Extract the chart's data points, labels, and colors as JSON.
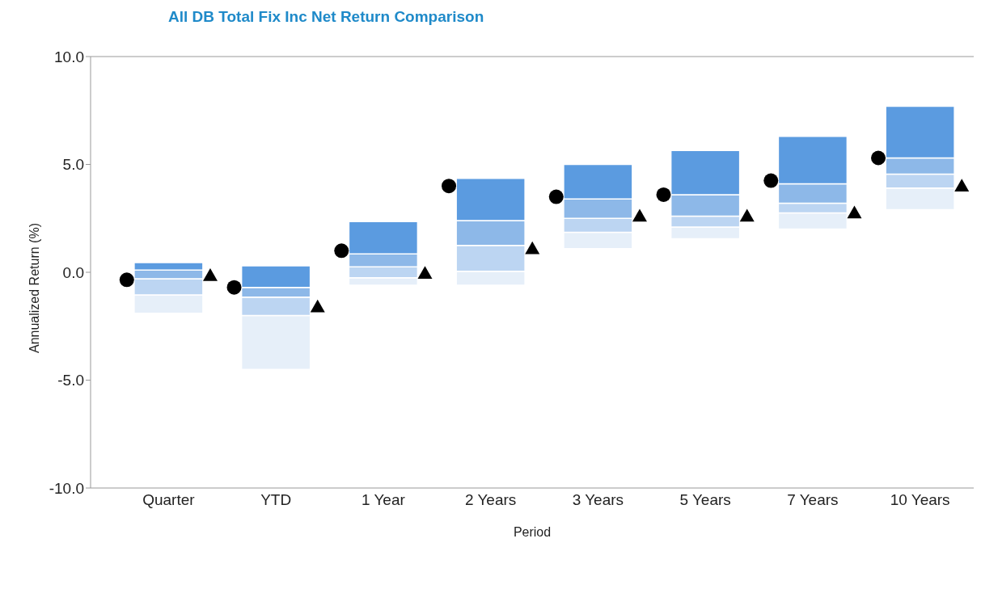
{
  "chart_data": {
    "type": "bar",
    "title": "All DB  Total Fix Inc Net Return Comparison",
    "xlabel": "Period",
    "ylabel": "Annualized Return (%)",
    "categories": [
      "Quarter",
      "YTD",
      "1 Year",
      "2 Years",
      "3 Years",
      "5 Years",
      "7 Years",
      "10 Years"
    ],
    "series": [
      {
        "color": "#e6eff9",
        "base": [
          -1.9,
          -4.5,
          -0.6,
          -0.6,
          1.1,
          1.55,
          2.0,
          2.9
        ],
        "values": [
          0.85,
          2.5,
          0.35,
          0.65,
          0.75,
          0.55,
          0.75,
          1.0
        ]
      },
      {
        "color": "#bcd5f2",
        "base": [
          -1.05,
          -2.0,
          -0.25,
          0.05,
          1.85,
          2.1,
          2.75,
          3.9
        ],
        "values": [
          0.75,
          0.85,
          0.5,
          1.2,
          0.65,
          0.5,
          0.45,
          0.65
        ]
      },
      {
        "color": "#8db8e8",
        "base": [
          -0.3,
          -1.15,
          0.25,
          1.25,
          2.5,
          2.6,
          3.2,
          4.55
        ],
        "values": [
          0.4,
          0.45,
          0.6,
          1.15,
          0.9,
          1.0,
          0.9,
          0.75
        ]
      },
      {
        "color": "#5b9be0",
        "base": [
          0.1,
          -0.7,
          0.85,
          2.4,
          3.4,
          3.6,
          4.1,
          5.3
        ],
        "values": [
          0.35,
          1.0,
          1.5,
          1.95,
          1.6,
          2.05,
          2.2,
          2.4
        ]
      },
      {
        "type": "scatter",
        "marker": "circle",
        "color": "#000000",
        "x": [
          "Quarter",
          "YTD",
          "1 Year",
          "2 Years",
          "3 Years",
          "5 Years",
          "7 Years",
          "10 Years"
        ],
        "values": [
          -0.35,
          -0.7,
          1.0,
          4.0,
          3.5,
          3.6,
          4.25,
          5.3
        ]
      },
      {
        "type": "scatter",
        "marker": "triangle",
        "color": "#000000",
        "x": [
          "Quarter",
          "YTD",
          "1 Year",
          "2 Years",
          "3 Years",
          "5 Years",
          "7 Years",
          "10 Years"
        ],
        "values": [
          -0.15,
          -1.6,
          -0.05,
          1.1,
          2.6,
          2.6,
          2.75,
          4.0
        ]
      }
    ],
    "ylim": [
      -10,
      10
    ],
    "yticks": [
      {
        "value": -10,
        "label": "-10.0"
      },
      {
        "value": -5,
        "label": "-5.0"
      },
      {
        "value": 0,
        "label": "0.0"
      },
      {
        "value": 5,
        "label": "5.0"
      },
      {
        "value": 10,
        "label": "10.0"
      }
    ],
    "grid": false,
    "legend": false
  }
}
